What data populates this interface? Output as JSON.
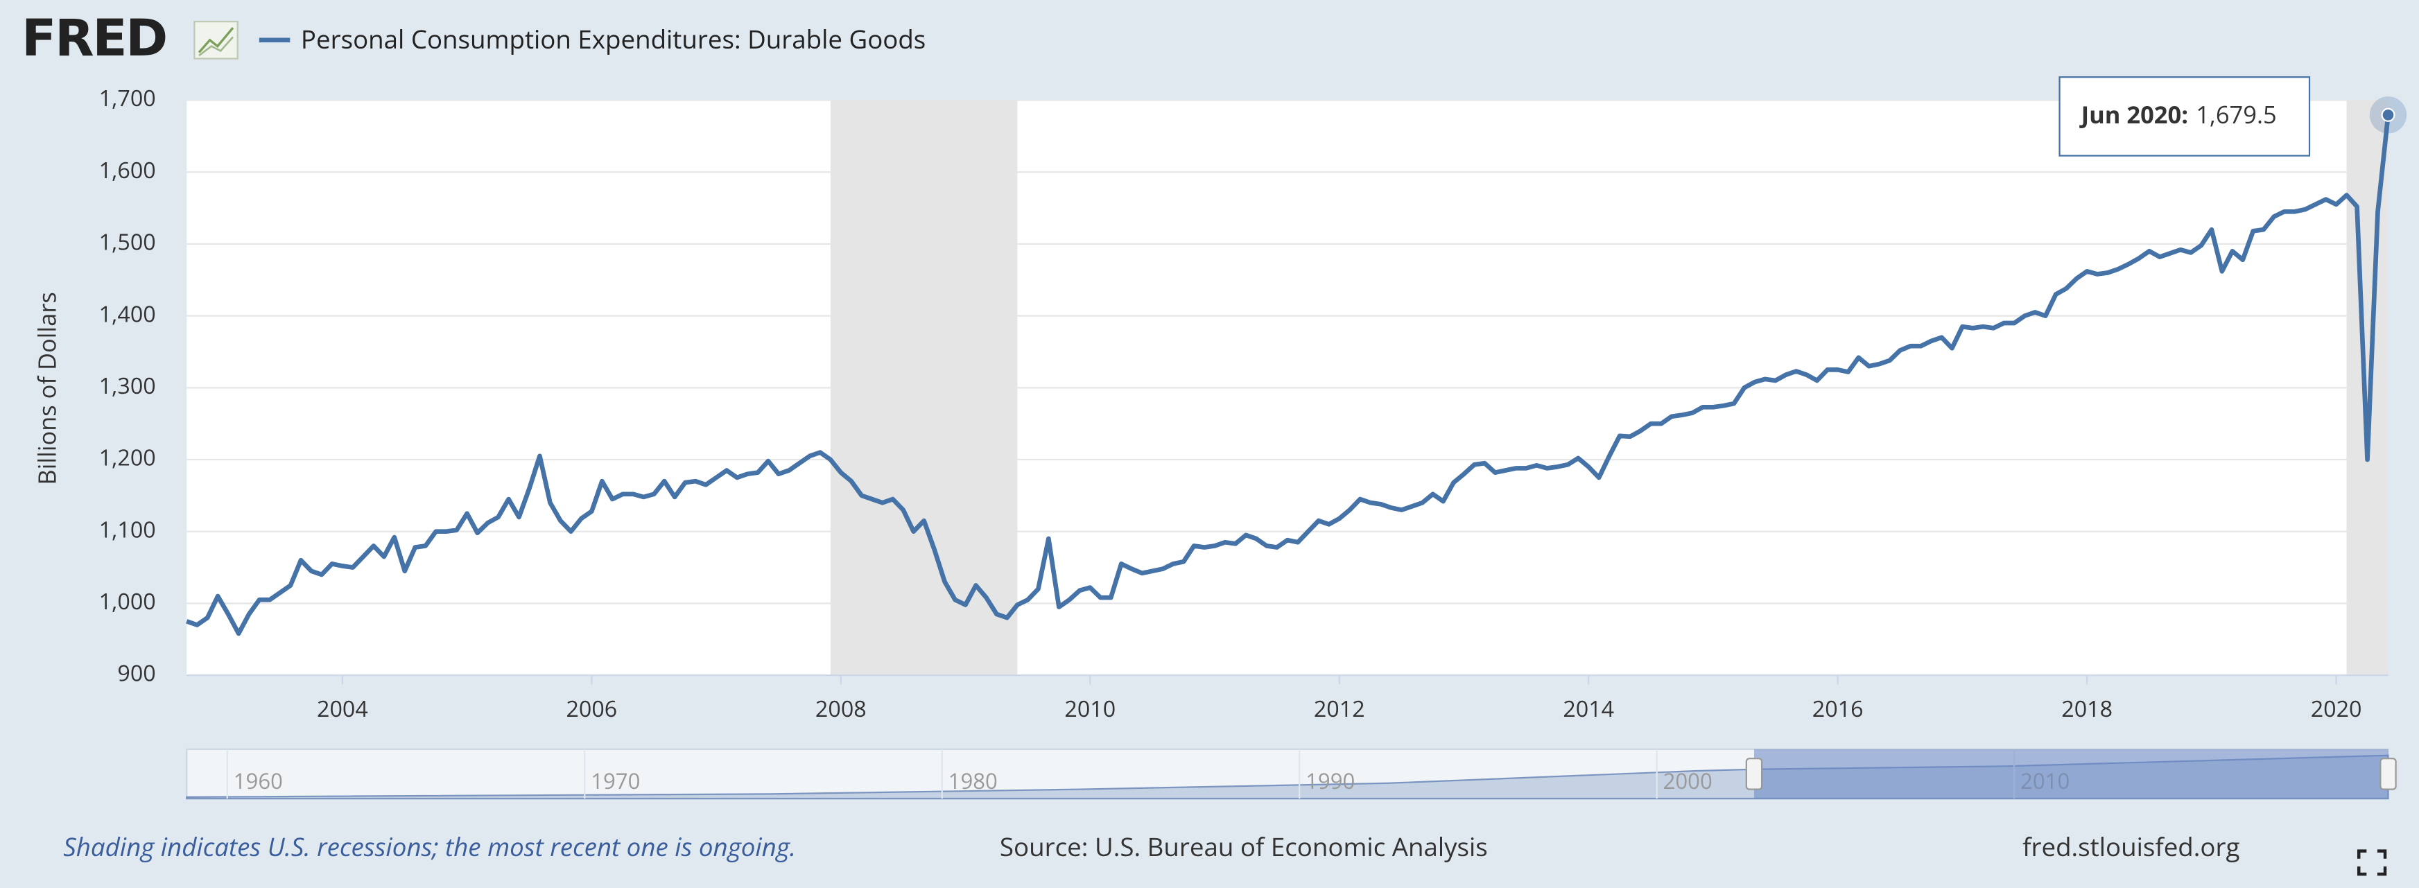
{
  "logo": "FRED",
  "chart_data": {
    "type": "line",
    "y_label": "Billions of Dollars",
    "x": [
      "Oct 2002",
      "Nov 2002",
      "Dec 2002",
      "Jan 2003",
      "Feb 2003",
      "Mar 2003",
      "Apr 2003",
      "May 2003",
      "Jun 2003",
      "Jul 2003",
      "Aug 2003",
      "Sep 2003",
      "Oct 2003",
      "Nov 2003",
      "Dec 2003",
      "Jan 2004",
      "Feb 2004",
      "Mar 2004",
      "Apr 2004",
      "May 2004",
      "Jun 2004",
      "Jul 2004",
      "Aug 2004",
      "Sep 2004",
      "Oct 2004",
      "Nov 2004",
      "Dec 2004",
      "Jan 2005",
      "Feb 2005",
      "Mar 2005",
      "Apr 2005",
      "May 2005",
      "Jun 2005",
      "Jul 2005",
      "Aug 2005",
      "Sep 2005",
      "Oct 2005",
      "Nov 2005",
      "Dec 2005",
      "Jan 2006",
      "Feb 2006",
      "Mar 2006",
      "Apr 2006",
      "May 2006",
      "Jun 2006",
      "Jul 2006",
      "Aug 2006",
      "Sep 2006",
      "Oct 2006",
      "Nov 2006",
      "Dec 2006",
      "Jan 2007",
      "Feb 2007",
      "Mar 2007",
      "Apr 2007",
      "May 2007",
      "Jun 2007",
      "Jul 2007",
      "Aug 2007",
      "Sep 2007",
      "Oct 2007",
      "Nov 2007",
      "Dec 2007",
      "Jan 2008",
      "Feb 2008",
      "Mar 2008",
      "Apr 2008",
      "May 2008",
      "Jun 2008",
      "Jul 2008",
      "Aug 2008",
      "Sep 2008",
      "Oct 2008",
      "Nov 2008",
      "Dec 2008",
      "Jan 2009",
      "Feb 2009",
      "Mar 2009",
      "Apr 2009",
      "May 2009",
      "Jun 2009",
      "Jul 2009",
      "Aug 2009",
      "Sep 2009",
      "Oct 2009",
      "Nov 2009",
      "Dec 2009",
      "Jan 2010",
      "Feb 2010",
      "Mar 2010",
      "Apr 2010",
      "May 2010",
      "Jun 2010",
      "Jul 2010",
      "Aug 2010",
      "Sep 2010",
      "Oct 2010",
      "Nov 2010",
      "Dec 2010",
      "Jan 2011",
      "Feb 2011",
      "Mar 2011",
      "Apr 2011",
      "May 2011",
      "Jun 2011",
      "Jul 2011",
      "Aug 2011",
      "Sep 2011",
      "Oct 2011",
      "Nov 2011",
      "Dec 2011",
      "Jan 2012",
      "Feb 2012",
      "Mar 2012",
      "Apr 2012",
      "May 2012",
      "Jun 2012",
      "Jul 2012",
      "Aug 2012",
      "Sep 2012",
      "Oct 2012",
      "Nov 2012",
      "Dec 2012",
      "Jan 2013",
      "Feb 2013",
      "Mar 2013",
      "Apr 2013",
      "May 2013",
      "Jun 2013",
      "Jul 2013",
      "Aug 2013",
      "Sep 2013",
      "Oct 2013",
      "Nov 2013",
      "Dec 2013",
      "Jan 2014",
      "Feb 2014",
      "Mar 2014",
      "Apr 2014",
      "May 2014",
      "Jun 2014",
      "Jul 2014",
      "Aug 2014",
      "Sep 2014",
      "Oct 2014",
      "Nov 2014",
      "Dec 2014",
      "Jan 2015",
      "Feb 2015",
      "Mar 2015",
      "Apr 2015",
      "May 2015",
      "Jun 2015",
      "Jul 2015",
      "Aug 2015",
      "Sep 2015",
      "Oct 2015",
      "Nov 2015",
      "Dec 2015",
      "Jan 2016",
      "Feb 2016",
      "Mar 2016",
      "Apr 2016",
      "May 2016",
      "Jun 2016",
      "Jul 2016",
      "Aug 2016",
      "Sep 2016",
      "Oct 2016",
      "Nov 2016",
      "Dec 2016",
      "Jan 2017",
      "Feb 2017",
      "Mar 2017",
      "Apr 2017",
      "May 2017",
      "Jun 2017",
      "Jul 2017",
      "Aug 2017",
      "Sep 2017",
      "Oct 2017",
      "Nov 2017",
      "Dec 2017",
      "Jan 2018",
      "Feb 2018",
      "Mar 2018",
      "Apr 2018",
      "May 2018",
      "Jun 2018",
      "Jul 2018",
      "Aug 2018",
      "Sep 2018",
      "Oct 2018",
      "Nov 2018",
      "Dec 2018",
      "Jan 2019",
      "Feb 2019",
      "Mar 2019",
      "Apr 2019",
      "May 2019",
      "Jun 2019",
      "Jul 2019",
      "Aug 2019",
      "Sep 2019",
      "Oct 2019",
      "Nov 2019",
      "Dec 2019",
      "Jan 2020",
      "Feb 2020",
      "Mar 2020",
      "Apr 2020",
      "May 2020",
      "Jun 2020"
    ],
    "series": [
      {
        "name": "Personal Consumption Expenditures: Durable Goods",
        "color": "#4572a7",
        "values": [
          975,
          970,
          980,
          1010,
          985,
          958,
          985,
          1005,
          1005,
          1015,
          1025,
          1060,
          1045,
          1040,
          1055,
          1052,
          1050,
          1065,
          1080,
          1065,
          1092,
          1045,
          1078,
          1080,
          1100,
          1100,
          1102,
          1125,
          1098,
          1112,
          1120,
          1145,
          1120,
          1160,
          1205,
          1140,
          1115,
          1100,
          1118,
          1128,
          1170,
          1145,
          1152,
          1152,
          1148,
          1152,
          1170,
          1148,
          1168,
          1170,
          1165,
          1175,
          1185,
          1175,
          1180,
          1182,
          1198,
          1180,
          1185,
          1195,
          1205,
          1210,
          1200,
          1182,
          1170,
          1150,
          1145,
          1140,
          1145,
          1130,
          1100,
          1115,
          1075,
          1030,
          1005,
          998,
          1025,
          1008,
          985,
          980,
          998,
          1005,
          1020,
          1090,
          995,
          1005,
          1018,
          1022,
          1008,
          1008,
          1055,
          1048,
          1042,
          1045,
          1048,
          1055,
          1058,
          1080,
          1078,
          1080,
          1085,
          1083,
          1095,
          1090,
          1080,
          1078,
          1088,
          1085,
          1100,
          1115,
          1110,
          1118,
          1130,
          1145,
          1140,
          1138,
          1133,
          1130,
          1135,
          1140,
          1152,
          1142,
          1168,
          1180,
          1193,
          1195,
          1182,
          1185,
          1188,
          1188,
          1192,
          1188,
          1190,
          1193,
          1202,
          1190,
          1175,
          1205,
          1233,
          1232,
          1240,
          1250,
          1250,
          1260,
          1262,
          1265,
          1273,
          1273,
          1275,
          1278,
          1300,
          1308,
          1312,
          1310,
          1318,
          1323,
          1318,
          1310,
          1325,
          1325,
          1322,
          1342,
          1330,
          1333,
          1338,
          1352,
          1358,
          1358,
          1365,
          1370,
          1355,
          1385,
          1383,
          1385,
          1383,
          1390,
          1390,
          1400,
          1405,
          1400,
          1430,
          1438,
          1452,
          1462,
          1458,
          1460,
          1465,
          1472,
          1480,
          1490,
          1482,
          1487,
          1492,
          1488,
          1498,
          1520,
          1462,
          1490,
          1478,
          1518,
          1520,
          1538,
          1545,
          1545,
          1548,
          1555,
          1562,
          1555,
          1568,
          1552,
          1200,
          1545,
          1679.5
        ]
      }
    ],
    "xlim": [
      "Oct 2002",
      "Jun 2020"
    ],
    "xticks": [
      2004,
      2006,
      2008,
      2010,
      2012,
      2014,
      2016,
      2018,
      2020
    ],
    "ylim": [
      900,
      1700
    ],
    "yticks": [
      900,
      {
        "value": 1000,
        "label": "1,000"
      },
      {
        "value": 1100,
        "label": "1,100"
      },
      {
        "value": 1200,
        "label": "1,200"
      },
      {
        "value": 1300,
        "label": "1,300"
      },
      {
        "value": 1400,
        "label": "1,400"
      },
      {
        "value": 1500,
        "label": "1,500"
      },
      {
        "value": 1600,
        "label": "1,600"
      },
      {
        "value": 1700,
        "label": "1,700"
      }
    ],
    "grid": true,
    "recessions": [
      [
        "Dec 2007",
        "Jun 2009"
      ],
      [
        "Feb 2020",
        "Jun 2020"
      ]
    ],
    "tooltip": {
      "date": "Jun 2020:",
      "value": "1,679.5"
    },
    "navigator": {
      "xlim": [
        1958,
        2019.6
      ],
      "xticks": [
        1960,
        1970,
        1980,
        1990,
        2000,
        2010
      ]
    },
    "notes": {
      "shading": "Shading indicates U.S. recessions; the most recent one is ongoing.",
      "source": "Source: U.S. Bureau of Economic Analysis",
      "site": "fred.stlouisfed.org"
    }
  }
}
